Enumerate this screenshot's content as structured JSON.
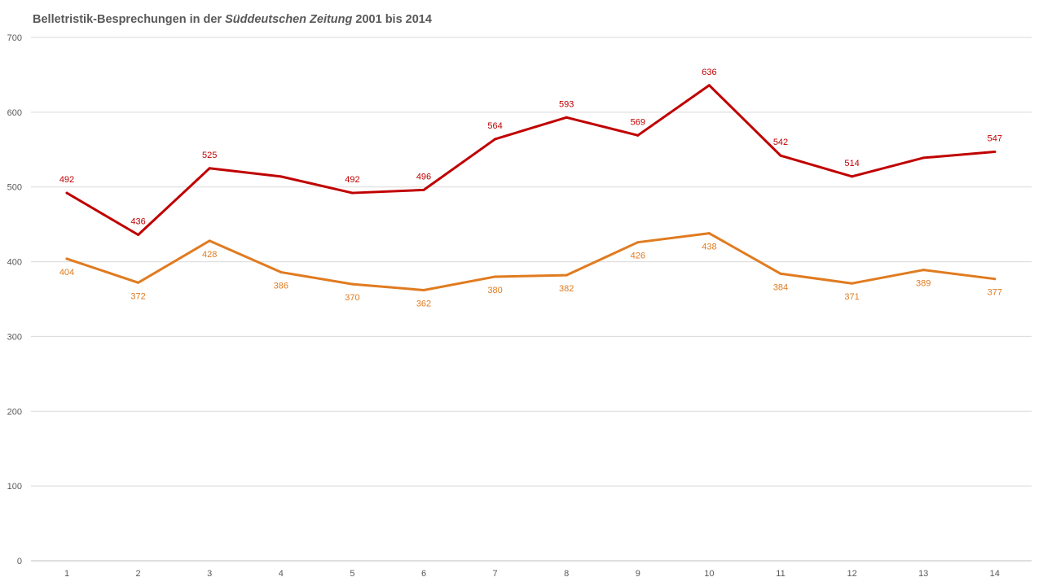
{
  "chart_data": {
    "type": "line",
    "title_parts": [
      "Belletristik-Besprechungen in der ",
      "Süddeutschen Zeitung",
      " 2001 bis 2014"
    ],
    "x": [
      1,
      2,
      3,
      4,
      5,
      6,
      7,
      8,
      9,
      10,
      11,
      12,
      13,
      14
    ],
    "ylim": [
      0,
      700
    ],
    "yticks": [
      0,
      100,
      200,
      300,
      400,
      500,
      600,
      700
    ],
    "grid": true,
    "series": [
      {
        "color": "#c00000",
        "values": [
          492,
          436,
          525,
          514,
          492,
          496,
          564,
          593,
          569,
          636,
          542,
          514,
          539,
          547
        ],
        "labels": [
          "492",
          "436",
          "525",
          "",
          "492",
          "496",
          "564",
          "593",
          "569",
          "636",
          "542",
          "514",
          "",
          "547"
        ]
      },
      {
        "color": "#e07b20",
        "values": [
          404,
          372,
          428,
          386,
          370,
          362,
          380,
          382,
          426,
          438,
          384,
          371,
          389,
          377
        ],
        "labels": [
          "404",
          "372",
          "428",
          "386",
          "370",
          "362",
          "380",
          "382",
          "426",
          "438",
          "384",
          "371",
          "389",
          "377"
        ]
      }
    ]
  }
}
